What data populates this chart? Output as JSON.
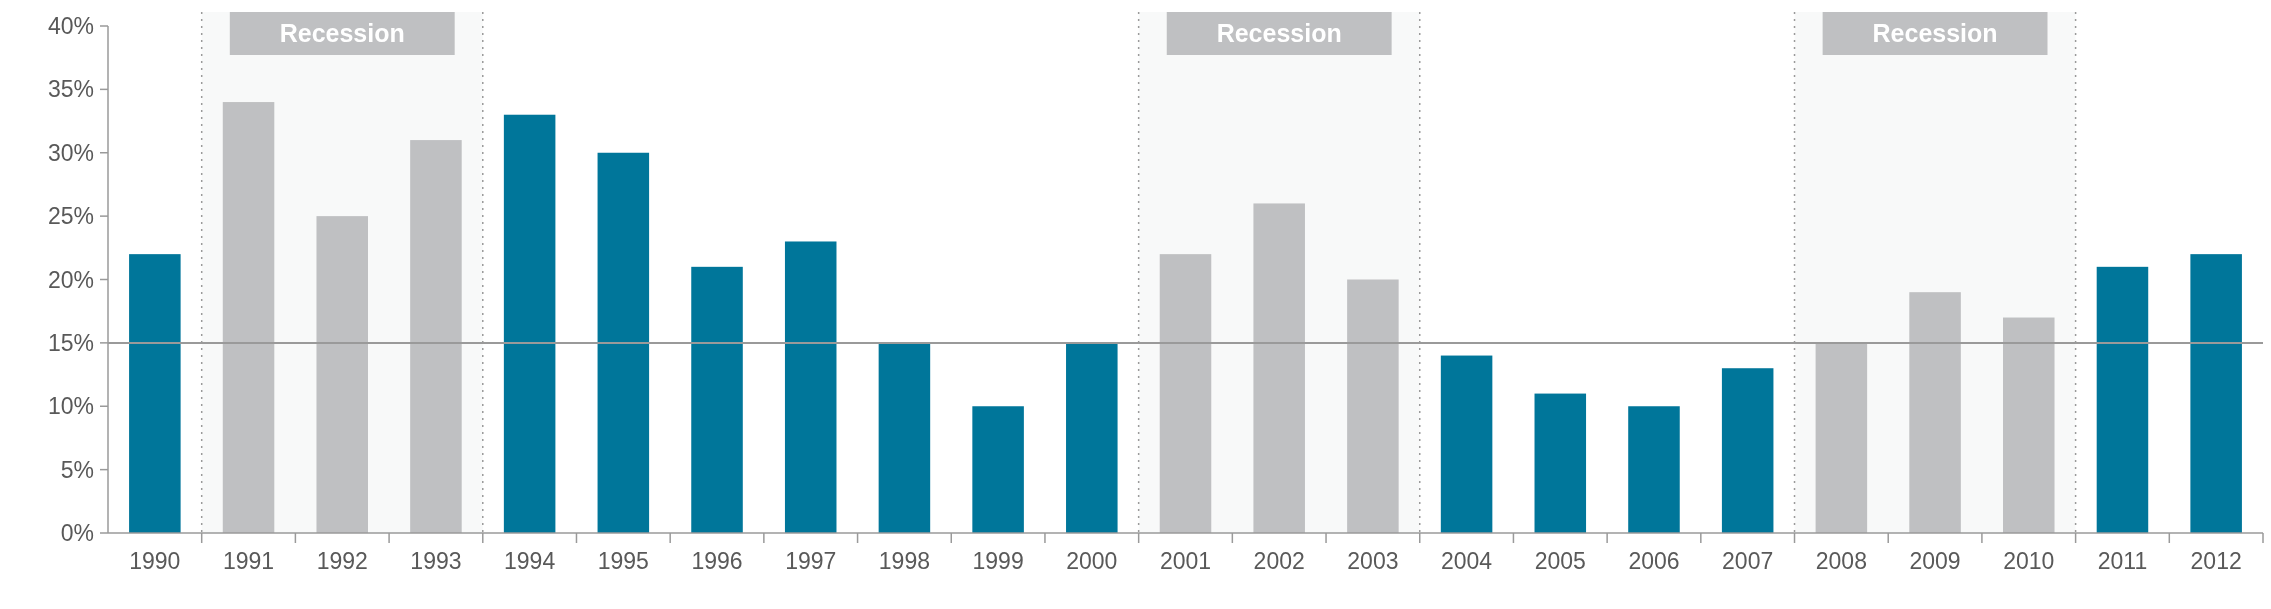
{
  "chart_data": {
    "type": "bar",
    "categories": [
      "1990",
      "1991",
      "1992",
      "1993",
      "1994",
      "1995",
      "1996",
      "1997",
      "1998",
      "1999",
      "2000",
      "2001",
      "2002",
      "2003",
      "2004",
      "2005",
      "2006",
      "2007",
      "2008",
      "2009",
      "2010",
      "2011",
      "2012"
    ],
    "values": [
      22,
      34,
      25,
      31,
      33,
      30,
      21,
      23,
      15,
      10,
      15,
      22,
      26,
      20,
      14,
      11,
      10,
      13,
      15,
      19,
      17,
      21,
      22
    ],
    "colors": [
      "#00769a",
      "#bfc0c2",
      "#bfc0c2",
      "#bfc0c2",
      "#00769a",
      "#00769a",
      "#00769a",
      "#00769a",
      "#00769a",
      "#00769a",
      "#00769a",
      "#bfc0c2",
      "#bfc0c2",
      "#bfc0c2",
      "#00769a",
      "#00769a",
      "#00769a",
      "#00769a",
      "#bfc0c2",
      "#bfc0c2",
      "#bfc0c2",
      "#00769a",
      "#00769a"
    ],
    "ylim": [
      0,
      40
    ],
    "yticks": [
      {
        "value": 0,
        "label": "0%"
      },
      {
        "value": 5,
        "label": "5%"
      },
      {
        "value": 10,
        "label": "10%"
      },
      {
        "value": 15,
        "label": "15%"
      },
      {
        "value": 20,
        "label": "20%"
      },
      {
        "value": 25,
        "label": "25%"
      },
      {
        "value": 30,
        "label": "30%"
      },
      {
        "value": 35,
        "label": "35%"
      },
      {
        "value": 40,
        "label": "40%"
      }
    ],
    "grid": false,
    "ref_lines": [
      {
        "axis": "y",
        "value": 15,
        "color": "#9a9a9a"
      }
    ],
    "bands": [
      {
        "axis": "x",
        "from": "1991",
        "to": "1993",
        "label": "Recession",
        "color": "#bfc0c2"
      },
      {
        "axis": "x",
        "from": "2001",
        "to": "2003",
        "label": "Recession",
        "color": "#bfc0c2"
      },
      {
        "axis": "x",
        "from": "2008",
        "to": "2010",
        "label": "Recession",
        "color": "#bfc0c2"
      }
    ]
  }
}
